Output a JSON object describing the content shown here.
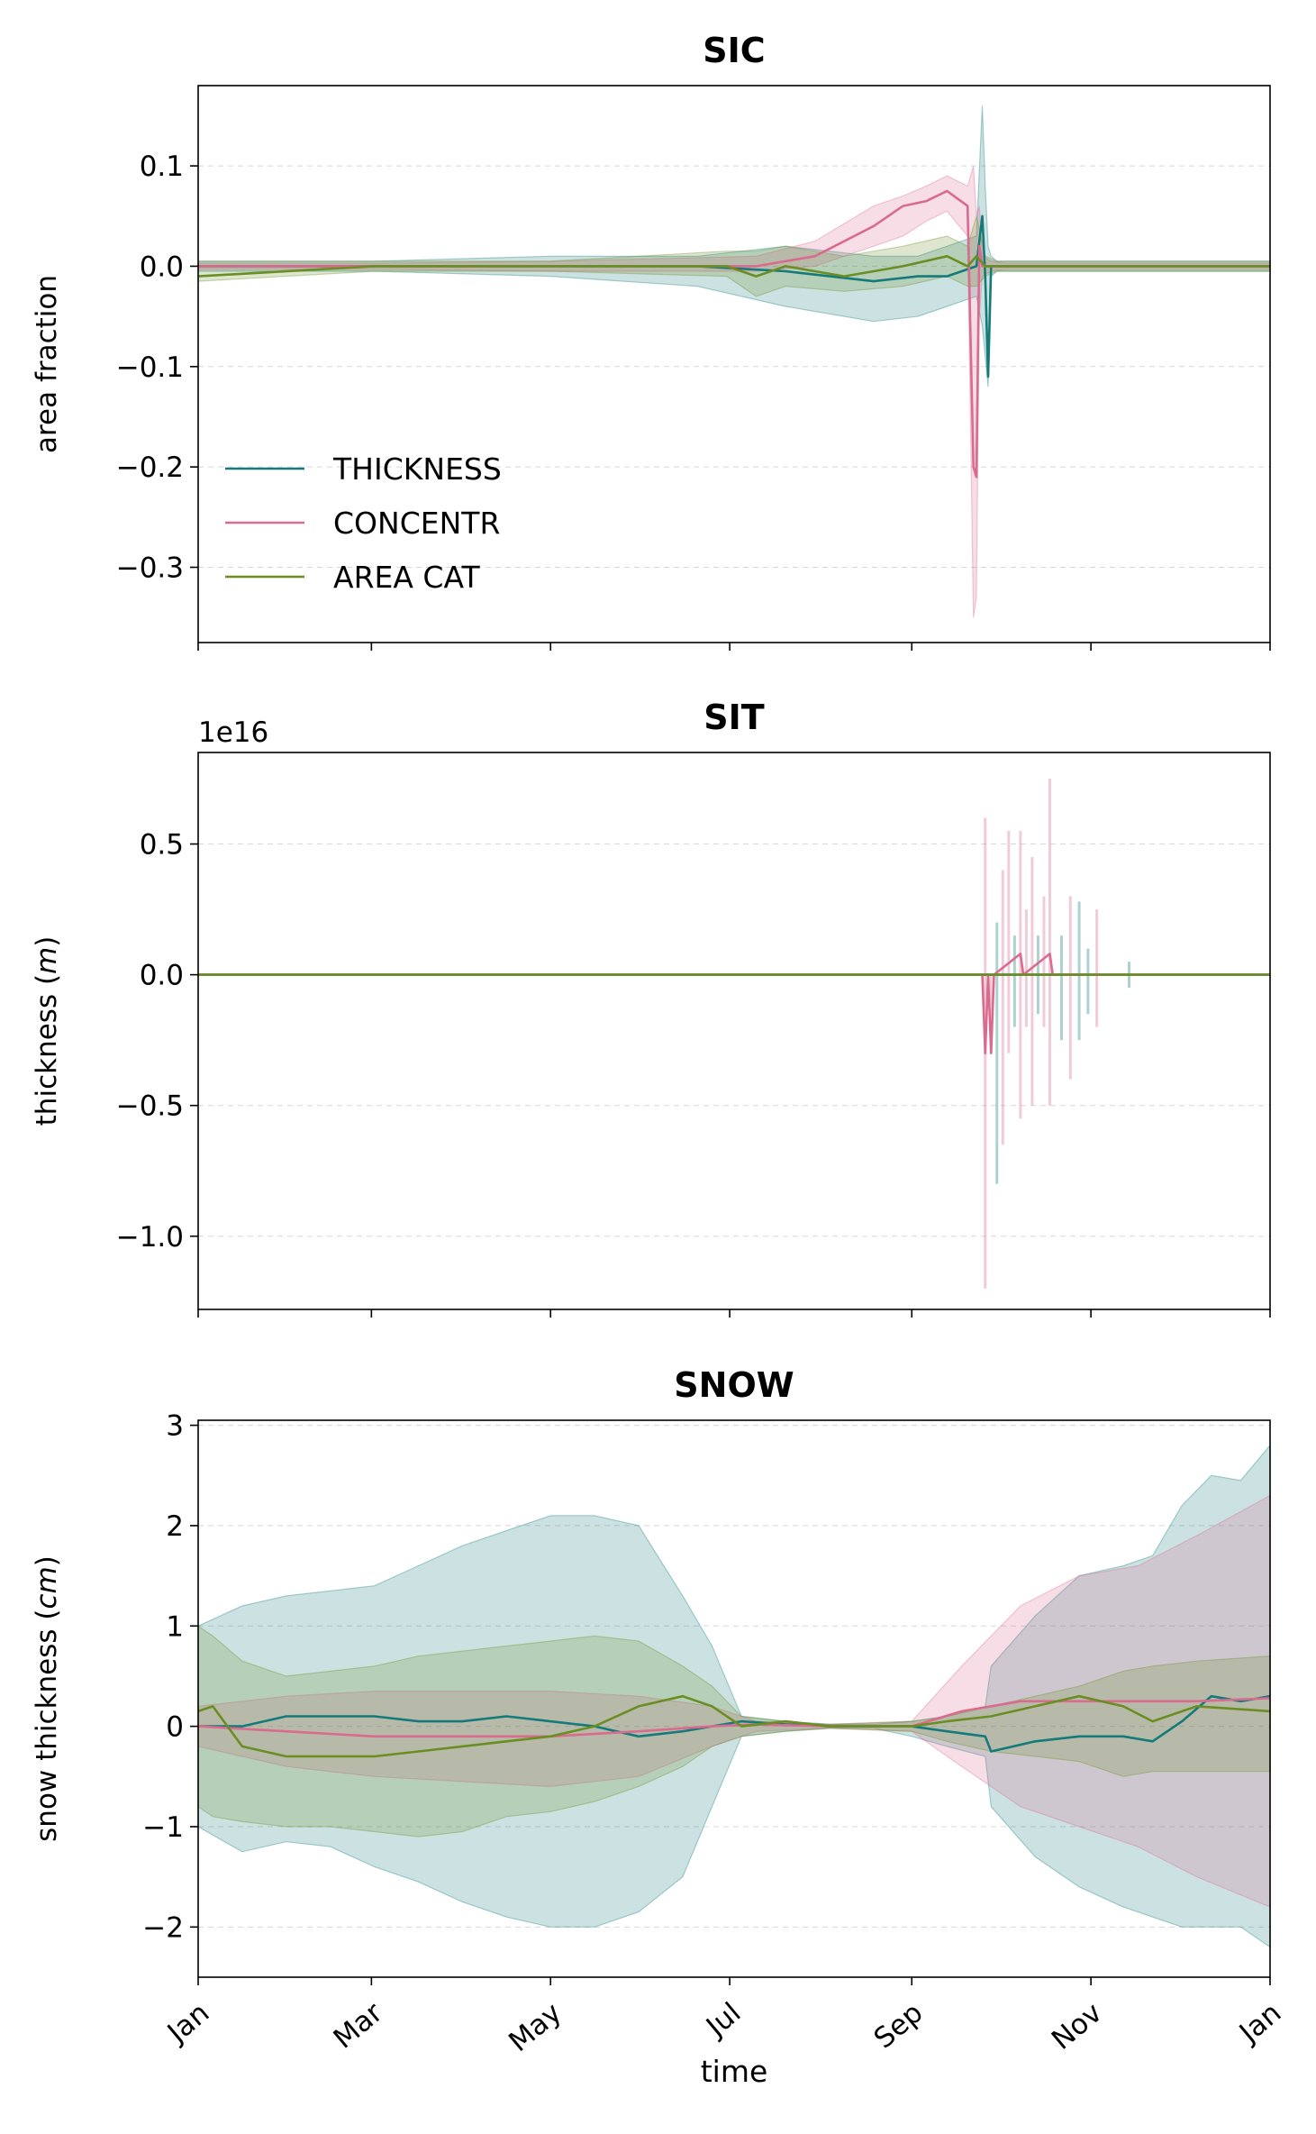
{
  "chart_data": [
    {
      "type": "line",
      "title": "SIC",
      "xlabel": "",
      "ylabel": "area fraction",
      "ylim": [
        -0.375,
        0.18
      ],
      "yticks": [
        0.1,
        0.0,
        -0.1,
        -0.2,
        -0.3
      ],
      "ytick_labels": [
        "0.1",
        "0.0",
        "−0.1",
        "−0.2",
        "−0.3"
      ],
      "xlim": [
        0,
        365
      ],
      "xticks": [
        0,
        59,
        120,
        181,
        243,
        304,
        365
      ],
      "grid": true,
      "legend": "lower-left",
      "series": [
        {
          "name": "THICKNESS",
          "color": "#157a7a",
          "x": [
            0,
            60,
            120,
            170,
            200,
            230,
            245,
            255,
            265,
            267,
            268,
            269,
            270,
            272,
            280,
            365
          ],
          "y": [
            0,
            0,
            0,
            0,
            -0.005,
            -0.015,
            -0.01,
            -0.01,
            0.0,
            0.05,
            -0.01,
            -0.11,
            0.0,
            0.0,
            0.0,
            0.0
          ],
          "lower": [
            -0.005,
            -0.005,
            -0.01,
            -0.02,
            -0.04,
            -0.055,
            -0.05,
            -0.04,
            -0.03,
            -0.06,
            -0.09,
            -0.12,
            -0.01,
            -0.005,
            -0.005,
            -0.005
          ],
          "upper": [
            0.005,
            0.005,
            0.01,
            0.01,
            0.02,
            0.01,
            0.01,
            0.02,
            0.03,
            0.16,
            0.08,
            0.02,
            0.01,
            0.005,
            0.005,
            0.005
          ]
        },
        {
          "name": "CONCENTR",
          "color": "#d96b8f",
          "x": [
            0,
            60,
            120,
            190,
            210,
            230,
            240,
            248,
            255,
            262,
            264,
            265,
            266,
            267,
            270,
            275,
            365
          ],
          "y": [
            0,
            0,
            0,
            0,
            0.01,
            0.04,
            0.06,
            0.065,
            0.075,
            0.06,
            -0.2,
            -0.21,
            0.02,
            0.0,
            0.0,
            0.0,
            0.0
          ],
          "lower": [
            -0.003,
            -0.003,
            -0.005,
            -0.005,
            0.0,
            0.02,
            0.03,
            0.045,
            0.055,
            0.03,
            -0.35,
            -0.33,
            -0.05,
            -0.01,
            -0.005,
            -0.003,
            -0.003
          ],
          "upper": [
            0.003,
            0.003,
            0.005,
            0.01,
            0.025,
            0.06,
            0.07,
            0.08,
            0.09,
            0.08,
            0.1,
            0.05,
            0.06,
            0.01,
            0.005,
            0.003,
            0.003
          ]
        },
        {
          "name": "AREA CAT",
          "color": "#6b8e23",
          "x": [
            0,
            60,
            120,
            180,
            190,
            200,
            220,
            240,
            255,
            262,
            265,
            268,
            272,
            365
          ],
          "y": [
            -0.01,
            0,
            0,
            0,
            -0.01,
            0.0,
            -0.01,
            0.0,
            0.01,
            0.0,
            0.01,
            0.0,
            0.0,
            0.0
          ],
          "lower": [
            -0.015,
            -0.005,
            -0.005,
            -0.01,
            -0.03,
            -0.02,
            -0.025,
            -0.02,
            -0.01,
            -0.02,
            -0.02,
            -0.01,
            -0.005,
            -0.005
          ],
          "upper": [
            0.005,
            0.005,
            0.005,
            0.015,
            0.015,
            0.02,
            0.01,
            0.02,
            0.03,
            0.02,
            0.05,
            0.01,
            0.005,
            0.005
          ]
        }
      ]
    },
    {
      "type": "line",
      "title": "SIT",
      "xlabel": "",
      "ylabel": "thickness (m)",
      "offset_text": "1e16",
      "ylim": [
        -1.28,
        0.85
      ],
      "yticks": [
        0.5,
        0.0,
        -0.5,
        -1.0
      ],
      "ytick_labels": [
        "0.5",
        "0.0",
        "−0.5",
        "−1.0"
      ],
      "xlim": [
        0,
        365
      ],
      "xticks": [
        0,
        59,
        120,
        181,
        243,
        304,
        365
      ],
      "grid": true,
      "spikes": [
        {
          "x": 268,
          "lower": -1.2,
          "upper": 0.6,
          "series": "CONCENTR"
        },
        {
          "x": 270,
          "lower": -0.3,
          "upper": 0.0,
          "series": "CONCENTR"
        },
        {
          "x": 272,
          "lower": -0.8,
          "upper": 0.2,
          "series": "THICKNESS"
        },
        {
          "x": 274,
          "lower": -0.65,
          "upper": 0.4,
          "series": "CONCENTR"
        },
        {
          "x": 276,
          "lower": -0.3,
          "upper": 0.55,
          "series": "CONCENTR"
        },
        {
          "x": 278,
          "lower": -0.2,
          "upper": 0.15,
          "series": "THICKNESS"
        },
        {
          "x": 280,
          "lower": -0.55,
          "upper": 0.55,
          "series": "CONCENTR"
        },
        {
          "x": 282,
          "lower": -0.2,
          "upper": 0.25,
          "series": "CONCENTR"
        },
        {
          "x": 284,
          "lower": -0.5,
          "upper": 0.45,
          "series": "CONCENTR"
        },
        {
          "x": 286,
          "lower": -0.15,
          "upper": 0.15,
          "series": "THICKNESS"
        },
        {
          "x": 288,
          "lower": -0.2,
          "upper": 0.3,
          "series": "CONCENTR"
        },
        {
          "x": 290,
          "lower": -0.5,
          "upper": 0.75,
          "series": "CONCENTR"
        },
        {
          "x": 294,
          "lower": -0.25,
          "upper": 0.15,
          "series": "THICKNESS"
        },
        {
          "x": 297,
          "lower": -0.4,
          "upper": 0.3,
          "series": "CONCENTR"
        },
        {
          "x": 300,
          "lower": -0.25,
          "upper": 0.28,
          "series": "THICKNESS"
        },
        {
          "x": 303,
          "lower": -0.15,
          "upper": 0.1,
          "series": "THICKNESS"
        },
        {
          "x": 306,
          "lower": -0.2,
          "upper": 0.25,
          "series": "CONCENTR"
        },
        {
          "x": 317,
          "lower": -0.05,
          "upper": 0.05,
          "series": "THICKNESS"
        }
      ],
      "series": [
        {
          "name": "THICKNESS",
          "color": "#157a7a",
          "x": [
            0,
            365
          ],
          "y": [
            0,
            0
          ]
        },
        {
          "name": "CONCENTR",
          "color": "#d96b8f",
          "x": [
            0,
            267,
            268,
            269,
            270,
            271,
            280,
            281,
            290,
            291,
            365
          ],
          "y": [
            0,
            0,
            -0.3,
            0,
            -0.3,
            0,
            0.08,
            0,
            0.08,
            0,
            0
          ]
        },
        {
          "name": "AREA CAT",
          "color": "#6b8e23",
          "x": [
            0,
            365
          ],
          "y": [
            0,
            0
          ]
        }
      ]
    },
    {
      "type": "line",
      "title": "SNOW",
      "xlabel": "time",
      "ylabel": "snow thickness (cm)",
      "ylim": [
        -2.5,
        3.05
      ],
      "yticks": [
        3,
        2,
        1,
        0,
        -1,
        -2
      ],
      "ytick_labels": [
        "3",
        "2",
        "1",
        "0",
        "−1",
        "−2"
      ],
      "xlim": [
        0,
        365
      ],
      "xticks": [
        0,
        59,
        120,
        181,
        243,
        304,
        365
      ],
      "xtick_labels": [
        "Jan",
        "Mar",
        "May",
        "Jul",
        "Sep",
        "Nov",
        "Jan"
      ],
      "grid": true,
      "series": [
        {
          "name": "THICKNESS",
          "color": "#157a7a",
          "x": [
            0,
            15,
            30,
            45,
            60,
            75,
            90,
            105,
            120,
            135,
            150,
            165,
            175,
            185,
            200,
            215,
            230,
            243,
            255,
            268,
            270,
            285,
            300,
            315,
            325,
            335,
            345,
            355,
            365
          ],
          "y": [
            0.0,
            0.0,
            0.1,
            0.1,
            0.1,
            0.05,
            0.05,
            0.1,
            0.05,
            0.0,
            -0.1,
            -0.05,
            0.0,
            0.05,
            0.02,
            0.0,
            0.0,
            0.0,
            -0.05,
            -0.1,
            -0.25,
            -0.15,
            -0.1,
            -0.1,
            -0.15,
            0.05,
            0.3,
            0.25,
            0.3
          ],
          "lower": [
            -1.0,
            -1.25,
            -1.15,
            -1.2,
            -1.4,
            -1.55,
            -1.75,
            -1.9,
            -2.0,
            -2.0,
            -1.85,
            -1.5,
            -0.8,
            -0.1,
            -0.05,
            -0.02,
            -0.02,
            -0.1,
            -0.2,
            -0.3,
            -0.8,
            -1.3,
            -1.6,
            -1.8,
            -1.9,
            -2.0,
            -2.0,
            -2.0,
            -2.2
          ],
          "upper": [
            1.0,
            1.2,
            1.3,
            1.35,
            1.4,
            1.6,
            1.8,
            1.95,
            2.1,
            2.1,
            2.0,
            1.3,
            0.8,
            0.1,
            0.05,
            0.02,
            0.02,
            0.05,
            0.1,
            0.2,
            0.6,
            1.1,
            1.5,
            1.6,
            1.7,
            2.2,
            2.5,
            2.45,
            2.8
          ]
        },
        {
          "name": "CONCENTR",
          "color": "#d96b8f",
          "x": [
            0,
            30,
            60,
            90,
            120,
            150,
            175,
            190,
            215,
            243,
            260,
            280,
            300,
            320,
            340,
            365
          ],
          "y": [
            0.0,
            -0.05,
            -0.1,
            -0.1,
            -0.1,
            -0.05,
            0.0,
            0.02,
            0.0,
            0.0,
            0.15,
            0.25,
            0.25,
            0.25,
            0.25,
            0.28
          ],
          "lower": [
            -0.2,
            -0.4,
            -0.5,
            -0.55,
            -0.6,
            -0.5,
            -0.2,
            -0.05,
            -0.02,
            -0.05,
            -0.4,
            -0.8,
            -1.0,
            -1.2,
            -1.5,
            -1.8
          ],
          "upper": [
            0.2,
            0.3,
            0.35,
            0.35,
            0.35,
            0.3,
            0.2,
            0.05,
            0.02,
            0.05,
            0.6,
            1.2,
            1.5,
            1.6,
            1.9,
            2.3
          ]
        },
        {
          "name": "AREA CAT",
          "color": "#6b8e23",
          "x": [
            0,
            5,
            15,
            30,
            45,
            60,
            75,
            90,
            105,
            120,
            135,
            150,
            165,
            175,
            185,
            200,
            215,
            243,
            255,
            270,
            285,
            300,
            315,
            325,
            340,
            365
          ],
          "y": [
            0.15,
            0.2,
            -0.2,
            -0.3,
            -0.3,
            -0.3,
            -0.25,
            -0.2,
            -0.15,
            -0.1,
            0.0,
            0.2,
            0.3,
            0.2,
            0.0,
            0.05,
            0.0,
            0.0,
            0.05,
            0.1,
            0.2,
            0.3,
            0.2,
            0.05,
            0.2,
            0.15
          ],
          "lower": [
            -0.8,
            -0.9,
            -0.95,
            -1.0,
            -1.0,
            -1.05,
            -1.1,
            -1.05,
            -0.9,
            -0.85,
            -0.75,
            -0.6,
            -0.4,
            -0.2,
            -0.1,
            -0.05,
            -0.02,
            -0.05,
            -0.15,
            -0.25,
            -0.3,
            -0.35,
            -0.5,
            -0.45,
            -0.45,
            -0.45
          ],
          "upper": [
            1.0,
            0.9,
            0.65,
            0.5,
            0.55,
            0.6,
            0.7,
            0.75,
            0.8,
            0.85,
            0.9,
            0.85,
            0.6,
            0.4,
            0.1,
            0.05,
            0.02,
            0.05,
            0.1,
            0.2,
            0.3,
            0.4,
            0.55,
            0.6,
            0.65,
            0.7
          ]
        }
      ]
    }
  ]
}
